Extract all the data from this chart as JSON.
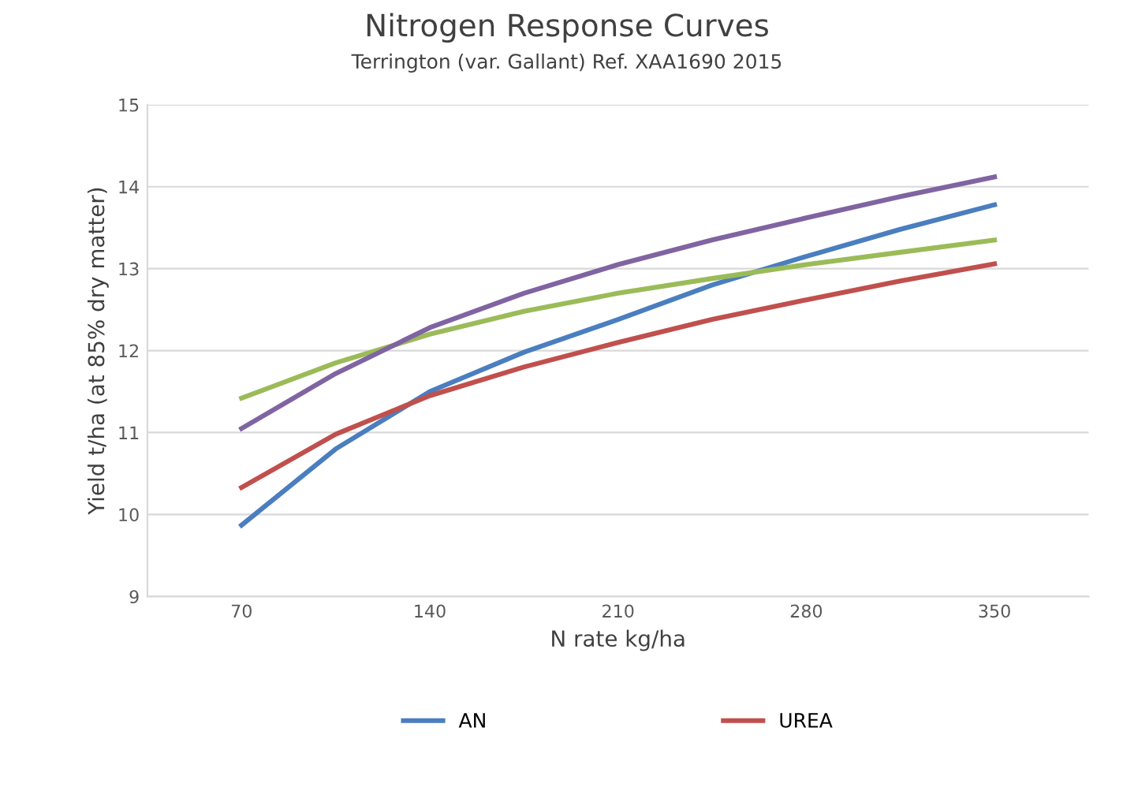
{
  "chart_data": {
    "type": "line",
    "title": "Nitrogen Response Curves",
    "subtitle": "Terrington (var. Gallant) Ref. XAA1690 2015",
    "xlabel": "N rate kg/ha",
    "ylabel": "Yield t/ha (at 85% dry matter)",
    "x": [
      70,
      105,
      140,
      175,
      210,
      245,
      280,
      315,
      350
    ],
    "series": [
      {
        "name": "AN",
        "color": "#4a7ebf",
        "values": [
          9.87,
          10.8,
          11.5,
          11.98,
          12.38,
          12.8,
          13.15,
          13.48,
          13.78
        ]
      },
      {
        "name": "UREA",
        "color": "#c0504d",
        "values": [
          10.33,
          10.98,
          11.45,
          11.8,
          12.1,
          12.38,
          12.62,
          12.85,
          13.06
        ]
      },
      {
        "color": "#9bbb59",
        "values": [
          11.42,
          11.85,
          12.2,
          12.48,
          12.7,
          12.88,
          13.05,
          13.2,
          13.35
        ]
      },
      {
        "color": "#8064a2",
        "values": [
          11.05,
          11.72,
          12.28,
          12.7,
          13.05,
          13.35,
          13.62,
          13.88,
          14.12
        ]
      }
    ],
    "xlim": [
      35,
      385
    ],
    "xticks": [
      70,
      140,
      210,
      280,
      350
    ],
    "ylim": [
      9,
      15
    ],
    "yticks": [
      9,
      10,
      11,
      12,
      13,
      14,
      15
    ],
    "grid": "y",
    "legend": "bottom",
    "marker": "none",
    "line_style": "solid"
  }
}
